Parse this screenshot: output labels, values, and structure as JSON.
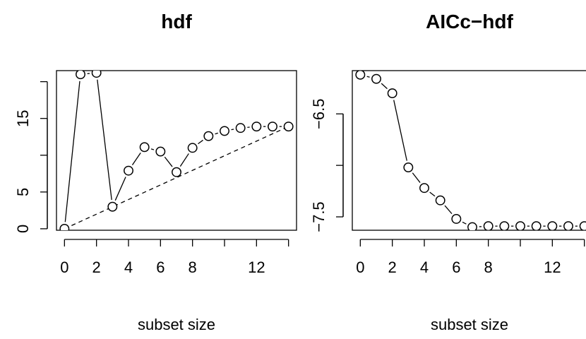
{
  "chart_data": [
    {
      "type": "scatter",
      "title": "hdf",
      "xlabel": "subset size",
      "ylabel": "",
      "xlim": [
        -0.5,
        14.5
      ],
      "ylim": [
        -0.2,
        21.5
      ],
      "x_ticks": [
        0,
        2,
        4,
        6,
        8,
        12
      ],
      "y_ticks": [
        0,
        5,
        15
      ],
      "x": [
        0,
        1,
        2,
        3,
        4,
        5,
        6,
        7,
        8,
        9,
        10,
        11,
        12,
        13,
        14
      ],
      "y": [
        0.0,
        21.0,
        21.2,
        3.0,
        7.9,
        11.1,
        10.5,
        7.7,
        11.0,
        12.6,
        13.3,
        13.7,
        13.9,
        13.9,
        13.9
      ],
      "points_line_style": "solid segments between points",
      "reference_line": {
        "x": [
          0,
          14
        ],
        "y": [
          0.0,
          13.9
        ],
        "style": "dashed"
      },
      "grid": false
    },
    {
      "type": "scatter",
      "title": "AICc−hdf",
      "xlabel": "subset size",
      "ylabel": "",
      "xlim": [
        -0.5,
        14.5
      ],
      "ylim": [
        -7.63,
        -6.08
      ],
      "x_ticks": [
        0,
        2,
        4,
        6,
        8,
        12
      ],
      "y_ticks": [
        -7.5,
        -6.5
      ],
      "x": [
        0,
        1,
        2,
        3,
        4,
        5,
        6,
        7,
        8,
        9,
        10,
        11,
        12,
        13,
        14
      ],
      "y": [
        -6.12,
        -6.16,
        -6.3,
        -7.02,
        -7.22,
        -7.34,
        -7.52,
        -7.6,
        -7.59,
        -7.59,
        -7.59,
        -7.59,
        -7.59,
        -7.59,
        -7.59
      ],
      "points_line_style": "solid segments between points",
      "grid": false
    }
  ]
}
